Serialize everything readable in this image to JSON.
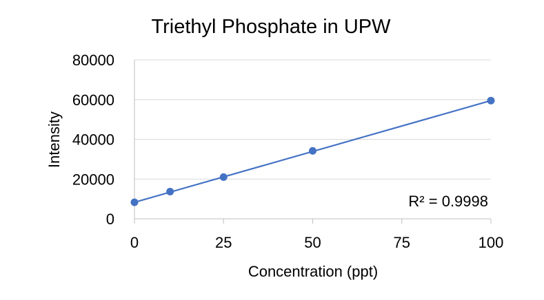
{
  "chart_data": {
    "type": "scatter",
    "title": "Triethyl Phosphate in UPW",
    "xlabel": "Concentration (ppt)",
    "ylabel": "Intensity",
    "xlim": [
      0,
      100
    ],
    "ylim": [
      0,
      80000
    ],
    "xticks": [
      "0",
      "25",
      "50",
      "75",
      "100"
    ],
    "yticks": [
      "0",
      "20000",
      "40000",
      "60000",
      "80000"
    ],
    "series": [
      {
        "x": [
          0,
          10,
          25,
          50,
          100
        ],
        "y": [
          8300,
          13700,
          21000,
          34200,
          59500
        ]
      }
    ],
    "trendline": {
      "type": "linear",
      "x": [
        0,
        100
      ],
      "y": [
        8300,
        59500
      ]
    },
    "annotation": "R² = 0.9998",
    "grid": "horizontal",
    "legend": "none",
    "colors": {
      "series": "#4472C4",
      "grid": "#D9D9D9",
      "axis": "#BFBFBF"
    }
  }
}
